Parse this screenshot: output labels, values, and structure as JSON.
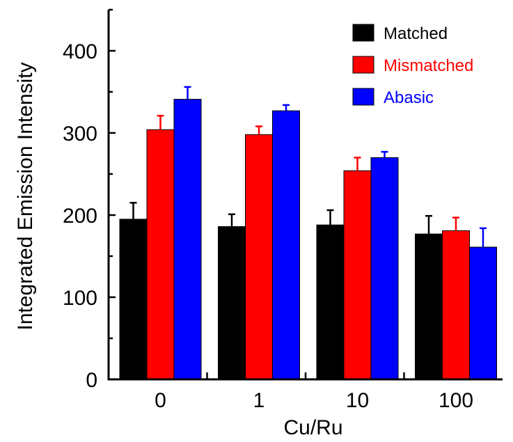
{
  "chart_data": {
    "type": "bar",
    "title": "",
    "xlabel": "Cu/Ru",
    "ylabel": "Integrated Emission Intensity",
    "categories": [
      "0",
      "1",
      "10",
      "100"
    ],
    "ylim": [
      0,
      450
    ],
    "yticks": [
      0,
      100,
      200,
      300,
      400
    ],
    "grid": false,
    "legend_position": "top-right",
    "series": [
      {
        "name": "Matched",
        "color": "#000000",
        "values": [
          195,
          186,
          188,
          177
        ],
        "errors": [
          20,
          15,
          18,
          22
        ]
      },
      {
        "name": "Mismatched",
        "color": "#ff0000",
        "values": [
          304,
          298,
          254,
          181
        ],
        "errors": [
          17,
          10,
          16,
          16
        ]
      },
      {
        "name": "Abasic",
        "color": "#0000ff",
        "values": [
          341,
          327,
          270,
          161
        ],
        "errors": [
          15,
          7,
          7,
          23
        ]
      }
    ]
  }
}
